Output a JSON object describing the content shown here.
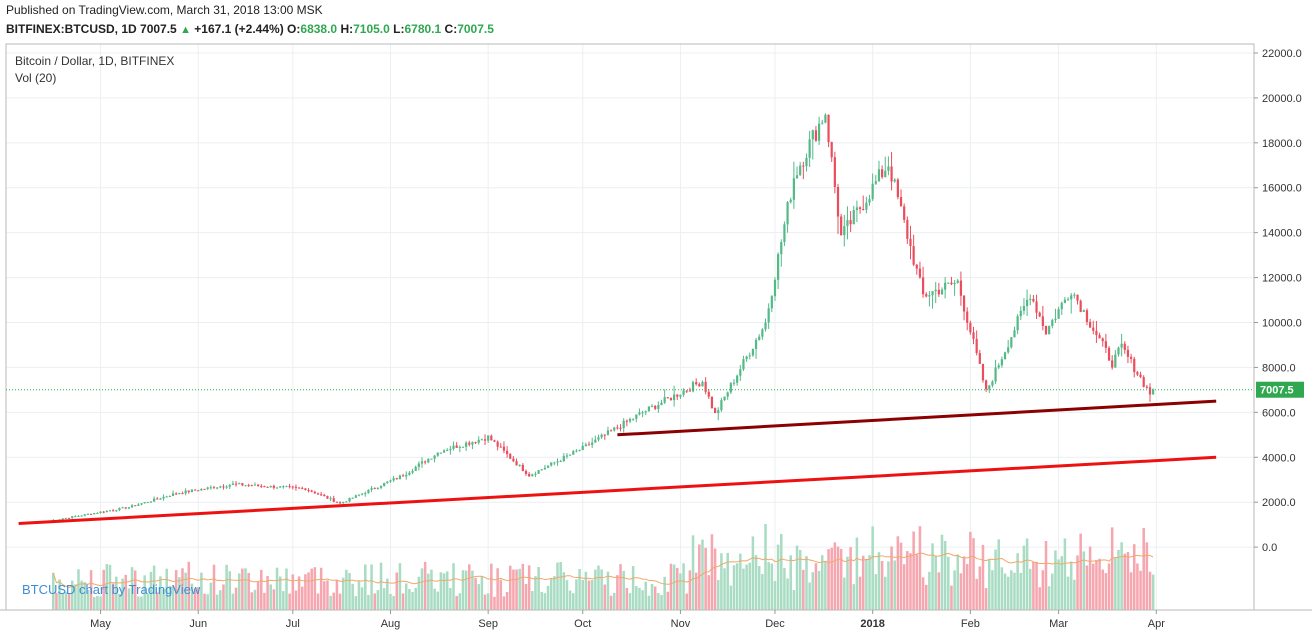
{
  "header": {
    "published": "Published on TradingView.com, March 31, 2018 13:00 MSK",
    "symbol": "BITFINEX:BTCUSD, 1D",
    "last": "7007.5",
    "change_arrow": "▲",
    "change": "+167.1 (+2.44%)",
    "o_label": "O:",
    "o_value": "6838.0",
    "h_label": "H:",
    "h_value": "7105.0",
    "l_label": "L:",
    "l_value": "6780.1",
    "c_label": "C:",
    "c_value": "7007.5"
  },
  "chart_data": {
    "type": "candlestick",
    "title": "Bitcoin / Dollar, 1D, BITFINEX",
    "indicator": "Vol (20)",
    "watermark": "BTCUSD chart by TradingView",
    "price_label": "7007.5",
    "price_level": 7007.5,
    "ylim": [
      -2800,
      22400
    ],
    "y_ticks": [
      "22000.0",
      "20000.0",
      "18000.0",
      "16000.0",
      "14000.0",
      "12000.0",
      "10000.0",
      "8000.0",
      "6000.0",
      "4000.0",
      "2000.0",
      "0.0"
    ],
    "x_ticks": [
      "May",
      "Jun",
      "Jul",
      "Aug",
      "Sep",
      "Oct",
      "Nov",
      "Dec",
      "2018",
      "Feb",
      "Mar",
      "Apr"
    ],
    "grid": true,
    "colors": {
      "up": "#53b987",
      "down": "#eb4d5c",
      "vol_up": "#a9dcc3",
      "vol_down": "#f5a6ae",
      "ma": "#f0a86a",
      "price_line": "#2fa84f",
      "trend_dark": "#8b0000",
      "trend_red": "#ee1111"
    },
    "key_closes": [
      {
        "date": "2017-04-15",
        "close": 1180
      },
      {
        "date": "2017-05-10",
        "close": 1780
      },
      {
        "date": "2017-05-25",
        "close": 2400
      },
      {
        "date": "2017-06-12",
        "close": 2800
      },
      {
        "date": "2017-07-05",
        "close": 2600
      },
      {
        "date": "2017-07-16",
        "close": 1950
      },
      {
        "date": "2017-08-05",
        "close": 3200
      },
      {
        "date": "2017-08-17",
        "close": 4300
      },
      {
        "date": "2017-09-01",
        "close": 4900
      },
      {
        "date": "2017-09-14",
        "close": 3200
      },
      {
        "date": "2017-10-01",
        "close": 4400
      },
      {
        "date": "2017-10-20",
        "close": 6000
      },
      {
        "date": "2017-11-08",
        "close": 7400
      },
      {
        "date": "2017-11-12",
        "close": 5900
      },
      {
        "date": "2017-11-28",
        "close": 10000
      },
      {
        "date": "2017-12-07",
        "close": 16500
      },
      {
        "date": "2017-12-17",
        "close": 19400
      },
      {
        "date": "2017-12-22",
        "close": 13800
      },
      {
        "date": "2018-01-06",
        "close": 17100
      },
      {
        "date": "2018-01-17",
        "close": 11200
      },
      {
        "date": "2018-01-28",
        "close": 11800
      },
      {
        "date": "2018-02-06",
        "close": 6900
      },
      {
        "date": "2018-02-20",
        "close": 11300
      },
      {
        "date": "2018-02-25",
        "close": 9600
      },
      {
        "date": "2018-03-05",
        "close": 11500
      },
      {
        "date": "2018-03-18",
        "close": 8200
      },
      {
        "date": "2018-03-21",
        "close": 8900
      },
      {
        "date": "2018-03-30",
        "close": 6840
      },
      {
        "date": "2018-03-31",
        "close": 7007.5
      }
    ],
    "trendlines": [
      {
        "name": "upper",
        "from": {
          "date": "2017-10-12",
          "value": 5000
        },
        "to": {
          "date": "2018-04-20",
          "value": 6500
        }
      },
      {
        "name": "lower",
        "from": {
          "date": "2017-04-05",
          "value": 1050
        },
        "to": {
          "date": "2018-04-20",
          "value": 4000
        }
      }
    ]
  }
}
